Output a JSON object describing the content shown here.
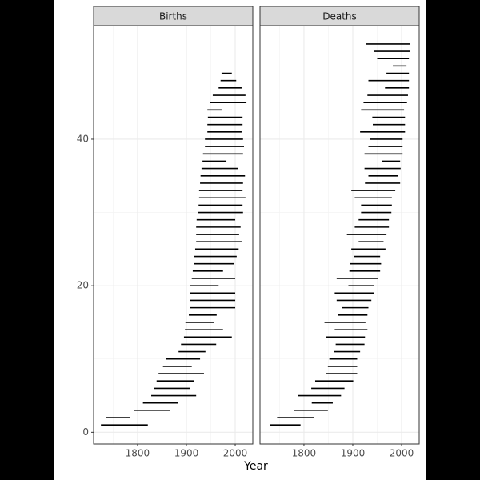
{
  "chart_data": {
    "type": "segment",
    "xlabel": "Year",
    "xlim": [
      1710,
      2036
    ],
    "ylim": [
      -1.6,
      55.5
    ],
    "xticks": [
      1800,
      1900,
      2000
    ],
    "yticks": [
      0,
      20,
      40
    ],
    "grid": true,
    "color": "#000000",
    "panels": [
      {
        "title": "Births",
        "y": [
          1,
          2,
          3,
          4,
          5,
          6,
          7,
          8,
          9,
          10,
          11,
          12,
          13,
          14,
          15,
          16,
          17,
          18,
          19,
          20,
          21,
          22,
          23,
          24,
          25,
          26,
          27,
          28,
          29,
          30,
          31,
          32,
          33,
          34,
          35,
          36,
          37,
          38,
          39,
          40,
          41,
          42,
          43,
          44,
          45,
          46,
          47,
          48,
          49
        ],
        "start": [
          1725,
          1736,
          1792,
          1811,
          1828,
          1834,
          1839,
          1843,
          1852,
          1859,
          1884,
          1889,
          1895,
          1897,
          1898,
          1905,
          1907,
          1907,
          1907,
          1908,
          1911,
          1913,
          1916,
          1916,
          1918,
          1920,
          1920,
          1920,
          1921,
          1923,
          1925,
          1926,
          1926,
          1928,
          1929,
          1931,
          1933,
          1934,
          1938,
          1938,
          1943,
          1943,
          1944,
          1943,
          1948,
          1954,
          1966,
          1970,
          1972
        ],
        "end": [
          1821,
          1784,
          1867,
          1882,
          1920,
          1908,
          1916,
          1936,
          1911,
          1928,
          1939,
          1961,
          1993,
          1975,
          1956,
          1962,
          2000,
          2000,
          2000,
          1966,
          2000,
          1975,
          1998,
          2003,
          2007,
          2013,
          2008,
          2011,
          2000,
          2016,
          2015,
          2021,
          2015,
          2016,
          2020,
          2005,
          1982,
          2016,
          2018,
          2016,
          2013,
          2015,
          2015,
          1972,
          2023,
          2021,
          2013,
          2002,
          1993
        ]
      },
      {
        "title": "Deaths",
        "y": [
          1,
          2,
          3,
          4,
          5,
          6,
          7,
          8,
          9,
          10,
          11,
          12,
          13,
          14,
          15,
          16,
          17,
          18,
          19,
          20,
          21,
          22,
          23,
          24,
          25,
          26,
          27,
          28,
          29,
          30,
          31,
          32,
          33,
          34,
          35,
          36,
          37,
          38,
          39,
          40,
          41,
          42,
          43,
          44,
          45,
          46,
          47,
          48,
          49,
          50,
          51,
          52,
          53
        ],
        "start": [
          1730,
          1745,
          1779,
          1816,
          1787,
          1815,
          1823,
          1846,
          1849,
          1852,
          1862,
          1865,
          1846,
          1863,
          1842,
          1870,
          1878,
          1867,
          1863,
          1891,
          1867,
          1893,
          1894,
          1902,
          1897,
          1912,
          1888,
          1904,
          1912,
          1917,
          1917,
          1904,
          1897,
          1925,
          1932,
          1924,
          1959,
          1924,
          1932,
          1935,
          1915,
          1941,
          1940,
          1917,
          1922,
          1930,
          1966,
          1932,
          1969,
          1982,
          1950,
          1943,
          1927
        ],
        "end": [
          1793,
          1821,
          1849,
          1859,
          1876,
          1883,
          1901,
          1909,
          1909,
          1909,
          1915,
          1924,
          1925,
          1930,
          1926,
          1930,
          1932,
          1938,
          1943,
          1943,
          1951,
          1956,
          1958,
          1956,
          1967,
          1963,
          1969,
          1974,
          1974,
          1979,
          1980,
          1980,
          1987,
          1997,
          1993,
          1998,
          1997,
          2002,
          2002,
          2002,
          2007,
          2007,
          2007,
          2005,
          2011,
          2013,
          2015,
          2015,
          2015,
          2010,
          2015,
          2018,
          2018
        ]
      }
    ]
  }
}
